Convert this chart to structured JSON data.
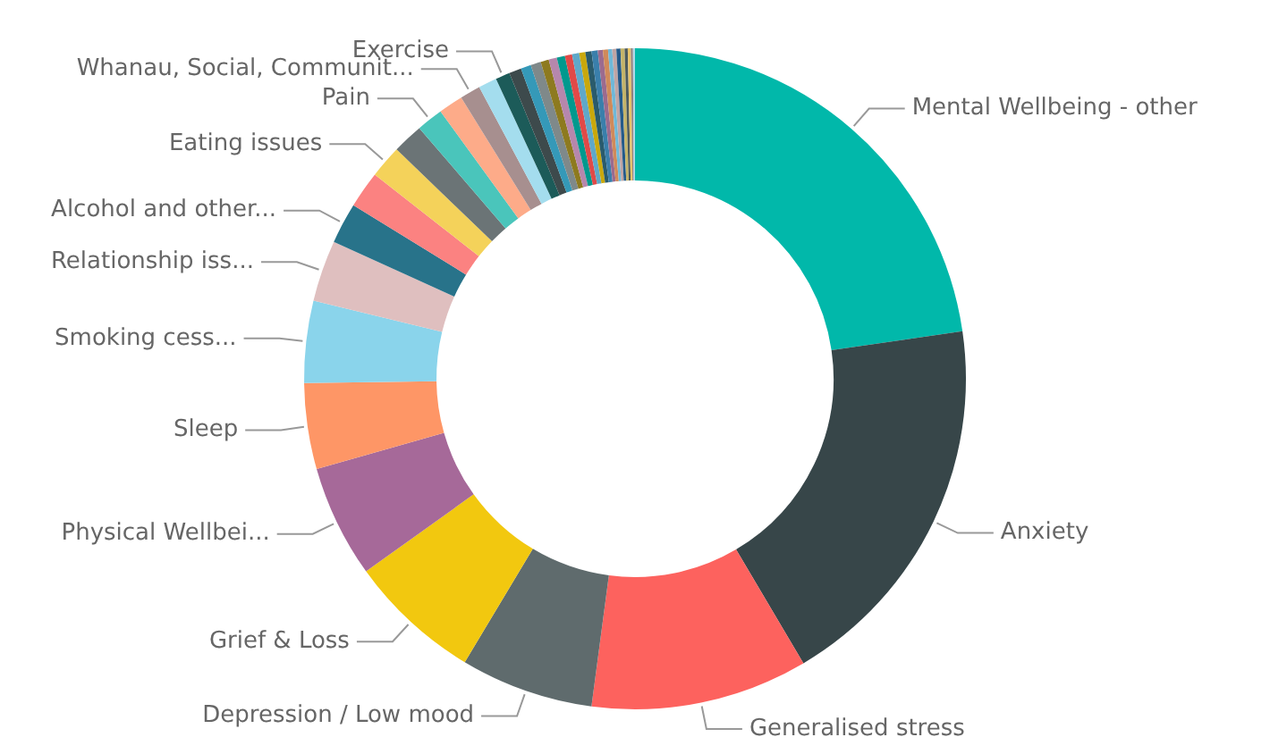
{
  "chart_data": {
    "type": "donut",
    "categories": [
      "Mental Wellbeing - other",
      "Anxiety",
      "Generalised stress",
      "Depression / Low mood",
      "Grief & Loss",
      "Physical Wellbei...",
      "Sleep",
      "Smoking cess...",
      "Relationship iss...",
      "Alcohol and other...",
      null,
      "Eating issues",
      null,
      "Pain",
      null,
      "Whanau, Social, Communit...",
      null,
      "Exercise",
      null,
      null,
      null,
      null,
      null,
      null,
      null,
      null,
      null,
      null,
      null,
      null,
      null,
      null,
      null,
      null,
      null,
      null,
      null,
      null,
      null
    ],
    "values": [
      22.7,
      18.8,
      10.6,
      6.5,
      6.5,
      5.5,
      4.2,
      4,
      3,
      2,
      1.8,
      1.6,
      1.5,
      1.3,
      1.2,
      1,
      0.9,
      0.7,
      0.6,
      0.5,
      0.5,
      0.4,
      0.4,
      0.4,
      0.35,
      0.35,
      0.3,
      0.3,
      0.3,
      0.25,
      0.25,
      0.2,
      0.2,
      0.2,
      0.2,
      0.15,
      0.15,
      0.1,
      0.1
    ],
    "colors": [
      "#01b8aa",
      "#374649",
      "#fd625e",
      "#5f6b6d",
      "#f2c80f",
      "#a66999",
      "#fe9666",
      "#8ad4eb",
      "#dfbfbf",
      "#28738a",
      "#fb8281",
      "#f4d25a",
      "#6b7476",
      "#4ac5bb",
      "#fdab89",
      "#a78f8f",
      "#a4ddee",
      "#1c5b59",
      "#3d4a4c",
      "#3599b8",
      "#7f898a",
      "#8d7a1f",
      "#b687ac",
      "#01998e",
      "#e04a48",
      "#5fa8c9",
      "#c9a80c",
      "#2a5b6c",
      "#3a7fab",
      "#9b6b8f",
      "#d08a5a",
      "#6fb8d8",
      "#bfa5a5",
      "#245a8a",
      "#c4b46a",
      "#4d5a5c",
      "#e6c36a",
      "#8f7f7f",
      "#b0d8e8"
    ],
    "legend": false
  }
}
